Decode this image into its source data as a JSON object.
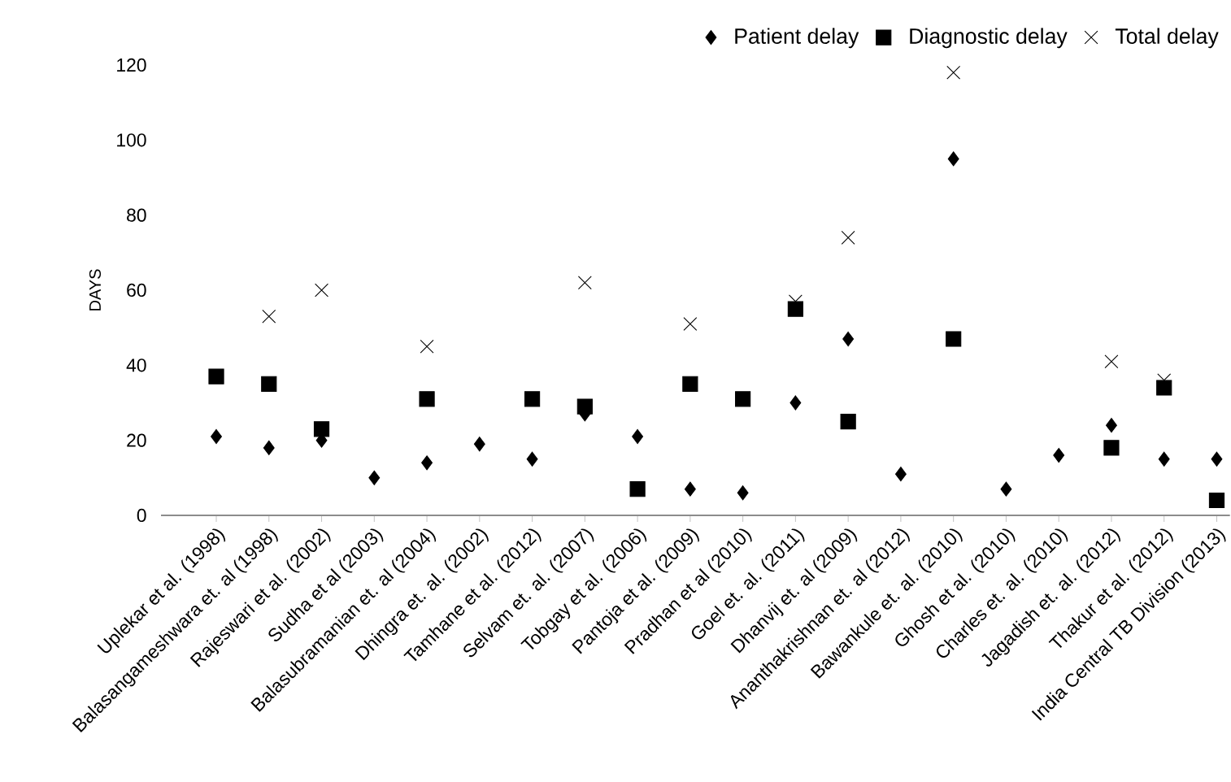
{
  "chart_data": {
    "type": "scatter",
    "ylabel": "DAYS",
    "categories": [
      "Uplekar et al. (1998)",
      "Balasangameshwara et. al  (1998)",
      "Rajeswari et al. (2002)",
      "Sudha et al (2003)",
      "Balasubramanian et. al (2004)",
      "Dhingra et. al. (2002)",
      "Tamhane et al. (2012)",
      "Selvam et. al. (2007)",
      "Tobgay et al. (2006)",
      "Pantoja et al. (2009)",
      "Pradhan et al (2010)",
      "Goel et. al. (2011)",
      "Dhanvij et. al (2009)",
      "Ananthakrishnan et. al (2012)",
      "Bawankule et. al.  (2010)",
      "Ghosh et al. (2010)",
      "Charles et. al. (2010)",
      "Jagadish et. al. (2012)",
      "Thakur  et al. (2012)",
      "India  Central TB Division (2013)"
    ],
    "series": [
      {
        "name": "Patient delay",
        "color": "#000000",
        "marker": "diamond",
        "values": [
          21,
          18,
          20,
          10,
          14,
          19,
          15,
          27,
          21,
          7,
          6,
          30,
          47,
          11,
          95,
          7,
          16,
          24,
          15,
          15
        ]
      },
      {
        "name": "Diagnostic delay",
        "color": "#000000",
        "marker": "square",
        "values": [
          37,
          35,
          23,
          null,
          31,
          null,
          31,
          29,
          7,
          35,
          31,
          55,
          25,
          null,
          47,
          null,
          null,
          18,
          34,
          4
        ]
      },
      {
        "name": "Total delay",
        "color": "#000000",
        "marker": "cross",
        "values": [
          null,
          53,
          60,
          null,
          45,
          null,
          null,
          62,
          null,
          51,
          null,
          57,
          74,
          null,
          118,
          null,
          null,
          41,
          36,
          null
        ]
      }
    ],
    "ylim": [
      0,
      120
    ],
    "yticks": [
      0,
      20,
      40,
      60,
      80,
      100,
      120
    ],
    "legend": "top right",
    "grid": false
  }
}
